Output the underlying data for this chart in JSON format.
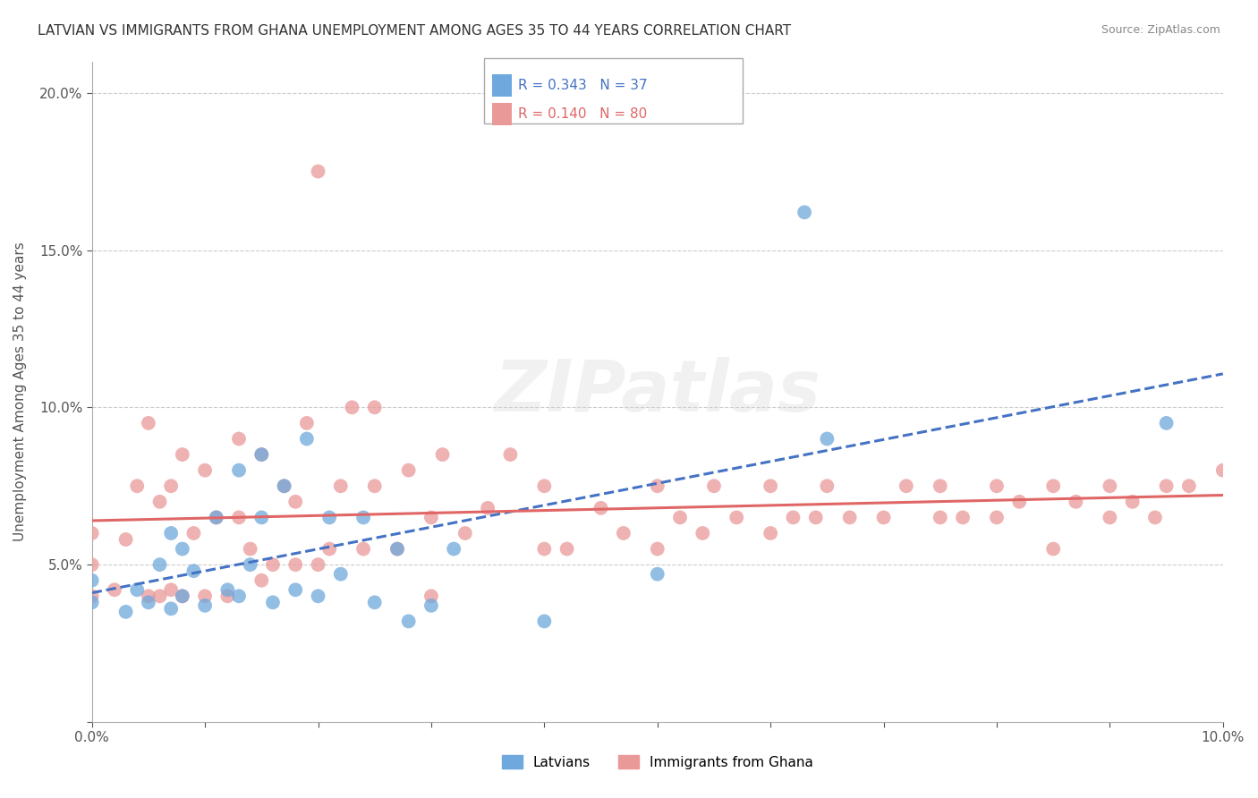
{
  "title": "LATVIAN VS IMMIGRANTS FROM GHANA UNEMPLOYMENT AMONG AGES 35 TO 44 YEARS CORRELATION CHART",
  "source": "Source: ZipAtlas.com",
  "ylabel": "Unemployment Among Ages 35 to 44 years",
  "xlim": [
    0.0,
    0.1
  ],
  "ylim": [
    0.0,
    0.21
  ],
  "latvian_color": "#6fa8dc",
  "ghana_color": "#ea9999",
  "latvian_line_color": "#4472c4",
  "ghana_line_color": "#e06666",
  "R_latvian": 0.343,
  "N_latvian": 37,
  "R_ghana": 0.14,
  "N_ghana": 80,
  "background_color": "#ffffff",
  "grid_color": "#cccccc",
  "latvians_scatter_x": [
    0.0,
    0.0,
    0.003,
    0.004,
    0.005,
    0.006,
    0.007,
    0.007,
    0.008,
    0.008,
    0.009,
    0.01,
    0.011,
    0.012,
    0.013,
    0.013,
    0.014,
    0.015,
    0.015,
    0.016,
    0.017,
    0.018,
    0.019,
    0.02,
    0.021,
    0.022,
    0.024,
    0.025,
    0.027,
    0.028,
    0.03,
    0.032,
    0.04,
    0.05,
    0.063,
    0.065,
    0.095
  ],
  "latvians_scatter_y": [
    0.038,
    0.045,
    0.035,
    0.042,
    0.038,
    0.05,
    0.036,
    0.06,
    0.04,
    0.055,
    0.048,
    0.037,
    0.065,
    0.042,
    0.04,
    0.08,
    0.05,
    0.065,
    0.085,
    0.038,
    0.075,
    0.042,
    0.09,
    0.04,
    0.065,
    0.047,
    0.065,
    0.038,
    0.055,
    0.032,
    0.037,
    0.055,
    0.032,
    0.047,
    0.162,
    0.09,
    0.095
  ],
  "ghana_scatter_x": [
    0.0,
    0.0,
    0.0,
    0.002,
    0.003,
    0.004,
    0.005,
    0.005,
    0.006,
    0.006,
    0.007,
    0.007,
    0.008,
    0.008,
    0.009,
    0.01,
    0.01,
    0.011,
    0.012,
    0.013,
    0.013,
    0.014,
    0.015,
    0.015,
    0.016,
    0.017,
    0.018,
    0.018,
    0.019,
    0.02,
    0.02,
    0.021,
    0.022,
    0.023,
    0.024,
    0.025,
    0.025,
    0.027,
    0.028,
    0.03,
    0.03,
    0.031,
    0.033,
    0.035,
    0.037,
    0.04,
    0.04,
    0.042,
    0.045,
    0.047,
    0.05,
    0.05,
    0.052,
    0.054,
    0.055,
    0.057,
    0.06,
    0.06,
    0.062,
    0.064,
    0.065,
    0.067,
    0.07,
    0.072,
    0.075,
    0.075,
    0.077,
    0.08,
    0.08,
    0.082,
    0.085,
    0.085,
    0.087,
    0.09,
    0.09,
    0.092,
    0.094,
    0.095,
    0.097,
    0.1
  ],
  "ghana_scatter_y": [
    0.04,
    0.05,
    0.06,
    0.042,
    0.058,
    0.075,
    0.04,
    0.095,
    0.04,
    0.07,
    0.042,
    0.075,
    0.04,
    0.085,
    0.06,
    0.04,
    0.08,
    0.065,
    0.04,
    0.065,
    0.09,
    0.055,
    0.045,
    0.085,
    0.05,
    0.075,
    0.05,
    0.07,
    0.095,
    0.05,
    0.175,
    0.055,
    0.075,
    0.1,
    0.055,
    0.075,
    0.1,
    0.055,
    0.08,
    0.04,
    0.065,
    0.085,
    0.06,
    0.068,
    0.085,
    0.055,
    0.075,
    0.055,
    0.068,
    0.06,
    0.055,
    0.075,
    0.065,
    0.06,
    0.075,
    0.065,
    0.06,
    0.075,
    0.065,
    0.065,
    0.075,
    0.065,
    0.065,
    0.075,
    0.065,
    0.075,
    0.065,
    0.065,
    0.075,
    0.07,
    0.055,
    0.075,
    0.07,
    0.065,
    0.075,
    0.07,
    0.065,
    0.075,
    0.075,
    0.08
  ]
}
